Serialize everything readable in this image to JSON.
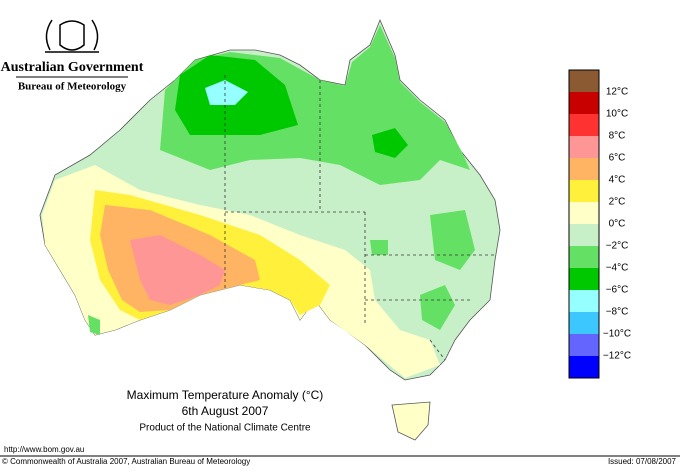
{
  "header": {
    "agency": "Australian Government",
    "bureau": "Bureau of Meteorology"
  },
  "map": {
    "title": "Maximum Temperature Anomaly (°C)",
    "date": "6th August 2007",
    "product": "Product of the National Climate Centre"
  },
  "legend": {
    "swatches": [
      "#8c5a32",
      "#c80000",
      "#ff3232",
      "#ff9696",
      "#ffb464",
      "#fff03c",
      "#ffffc8",
      "#c8f0c8",
      "#64e164",
      "#00c800",
      "#96ffff",
      "#3cc8ff",
      "#6464ff",
      "#0000ff"
    ],
    "labels": [
      "12°C",
      "10°C",
      "8°C",
      "6°C",
      "4°C",
      "2°C",
      "0°C",
      "−2°C",
      "−4°C",
      "−6°C",
      "−8°C",
      "−10°C",
      "−12°C"
    ]
  },
  "footer": {
    "url": "http://www.bom.gov.au",
    "copyright": "© Commonwealth of Australia 2007, Australian Bureau of Meteorology",
    "issued": "Issued: 07/08/2007"
  }
}
